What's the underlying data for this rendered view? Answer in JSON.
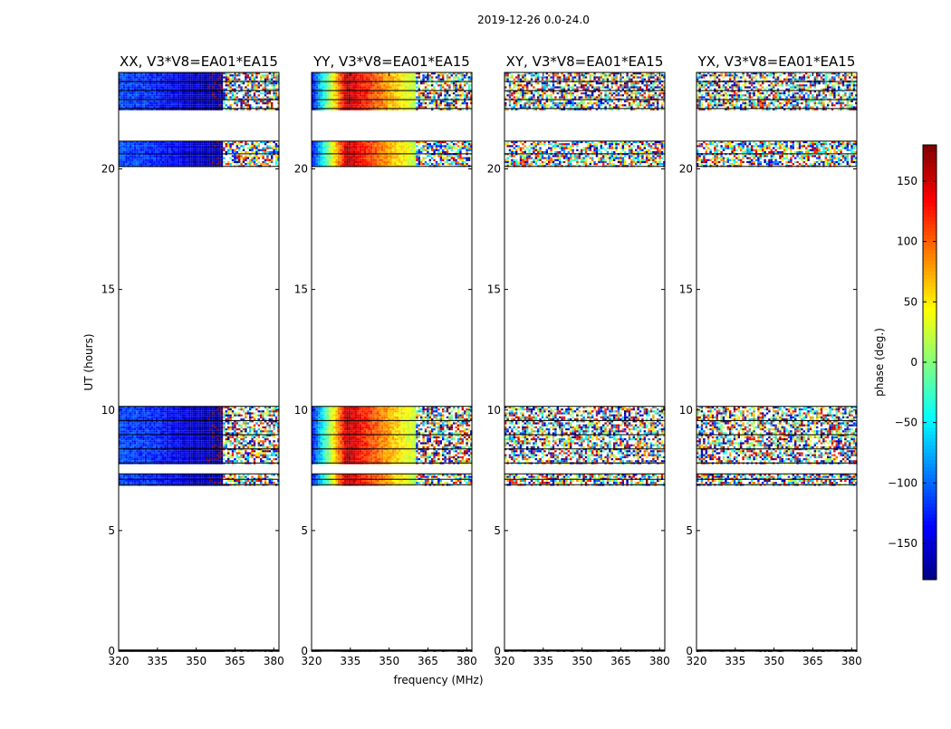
{
  "figure": {
    "suptitle": "2019-12-26 0.0-24.0",
    "xlabel": "frequency (MHz)",
    "ylabel": "UT (hours)"
  },
  "colorbar": {
    "label": "phase (deg.)",
    "range": [
      -180,
      180
    ],
    "ticks": [
      150,
      100,
      50,
      0,
      -50,
      -100,
      -150
    ],
    "tick_labels": [
      "150",
      "100",
      "50",
      "0",
      "−50",
      "−100",
      "−150"
    ],
    "colormap": "jet",
    "colors": [
      "#00007f",
      "#0000ff",
      "#007fff",
      "#00ffff",
      "#7fff7f",
      "#ffff00",
      "#ff7f00",
      "#ff0000",
      "#7f0000"
    ]
  },
  "chart_data": [
    {
      "type": "heatmap",
      "title": "XX, V3*V8=EA01*EA15",
      "polarization": "XX",
      "xlim": [
        320,
        382
      ],
      "ylim": [
        0,
        24
      ],
      "xticks": [
        320,
        335,
        350,
        365,
        380
      ],
      "yticks": [
        0,
        5,
        10,
        15,
        20
      ],
      "pattern": "coherent",
      "data_blocks_ut": [
        [
          0.0,
          0.05
        ],
        [
          6.9,
          7.35
        ],
        [
          7.8,
          10.15
        ],
        [
          20.1,
          21.15
        ],
        [
          22.5,
          24.0
        ]
      ],
      "phase_gradient_deg": [
        -110,
        -120,
        -150,
        -170
      ],
      "noisy_above_mhz": 360
    },
    {
      "type": "heatmap",
      "title": "YY, V3*V8=EA01*EA15",
      "polarization": "YY",
      "xlim": [
        320,
        382
      ],
      "ylim": [
        0,
        24
      ],
      "xticks": [
        320,
        335,
        350,
        365,
        380
      ],
      "yticks": [
        0,
        5,
        10,
        15,
        20
      ],
      "pattern": "coherent",
      "data_blocks_ut": [
        [
          0.0,
          0.05
        ],
        [
          6.9,
          7.35
        ],
        [
          7.8,
          10.15
        ],
        [
          20.1,
          21.15
        ],
        [
          22.5,
          24.0
        ]
      ],
      "phase_gradient_deg": [
        -130,
        160,
        90,
        20
      ],
      "noisy_above_mhz": 360
    },
    {
      "type": "heatmap",
      "title": "XY, V3*V8=EA01*EA15",
      "polarization": "XY",
      "xlim": [
        320,
        382
      ],
      "ylim": [
        0,
        24
      ],
      "xticks": [
        320,
        335,
        350,
        365,
        380
      ],
      "yticks": [
        0,
        5,
        10,
        15,
        20
      ],
      "pattern": "noise",
      "data_blocks_ut": [
        [
          0.0,
          0.05
        ],
        [
          6.9,
          7.35
        ],
        [
          7.8,
          10.15
        ],
        [
          20.1,
          21.15
        ],
        [
          22.5,
          24.0
        ]
      ]
    },
    {
      "type": "heatmap",
      "title": "YX, V3*V8=EA01*EA15",
      "polarization": "YX",
      "xlim": [
        320,
        382
      ],
      "ylim": [
        0,
        24
      ],
      "xticks": [
        320,
        335,
        350,
        365,
        380
      ],
      "yticks": [
        0,
        5,
        10,
        15,
        20
      ],
      "pattern": "noise",
      "data_blocks_ut": [
        [
          0.0,
          0.05
        ],
        [
          6.9,
          7.35
        ],
        [
          7.8,
          10.15
        ],
        [
          20.1,
          21.15
        ],
        [
          22.5,
          24.0
        ]
      ]
    }
  ]
}
